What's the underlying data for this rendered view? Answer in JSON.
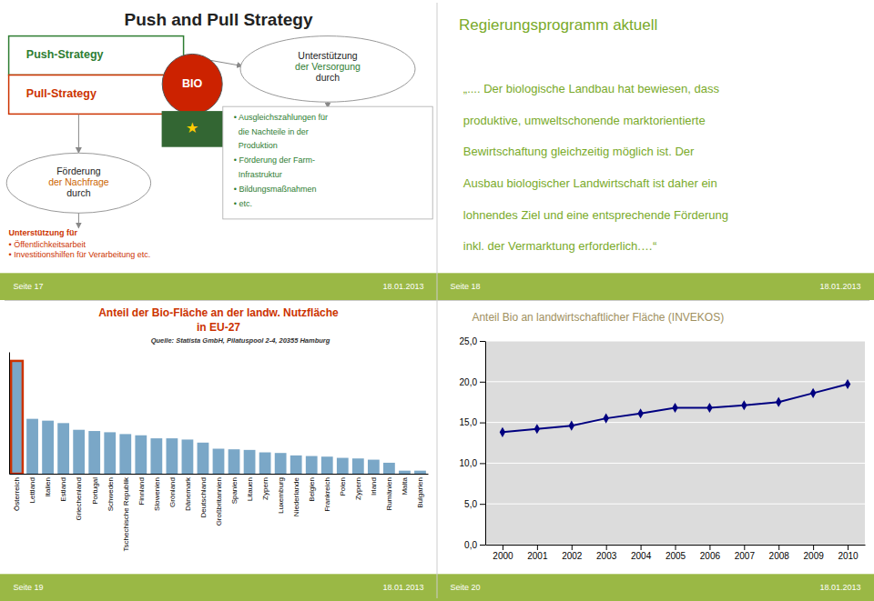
{
  "chart_data": [
    {
      "type": "diagram",
      "title": "Push and Pull Strategy",
      "annotations": [
        "Push-Strategy",
        "Pull-Strategy",
        "Förderung",
        "der Nachfrage",
        "durch",
        "Unterstützung für",
        "• Öffentlichkeitsarbeit",
        "• Investitionshilfen für Verarbeitung etc.",
        "BIO",
        "★",
        "Unterstützung",
        "der Versorgung",
        "durch",
        "• Ausgleichszahlungen für",
        "  die Nachteile in der",
        "  Produktion",
        "• Förderung der Farm-",
        "  Infrastruktur",
        "• Bildungsmaßnahmen",
        "• etc.",
        "Seite 17",
        "18.01.2013"
      ]
    },
    {
      "type": "text",
      "title": "Regierungsprogramm aktuell",
      "annotations": [
        "„.... Der biologische Landbau hat bewiesen, dass",
        "produktive, umweltschonende marktorientierte",
        "Bewirtschaftung gleichzeitig möglich ist. Der",
        "Ausbau biologischer Landwirtschaft ist daher ein",
        "lohnendes Ziel und eine entsprechende Förderung",
        "inkl. der Vermarktung erforderlich.…“",
        "Seite 18",
        "18.01.2013"
      ]
    },
    {
      "type": "bar",
      "title": "Anteil der Bio-Fläche an der landw. Nutzfläche",
      "subtitle": "in EU-27",
      "annotations": [
        "Quelle: Statista GmbH, Pilatuspool 2-4, 20355 Hamburg",
        "Seite 19",
        "18.01.2013"
      ],
      "categories": [
        "Österreich",
        "Lettland",
        "Italien",
        "Estland",
        "Griechenland",
        "Portugal",
        "Schweden",
        "Tschechische Republik",
        "Finnland",
        "Slowenien",
        "Grönland",
        "Dänemark",
        "Deutschland",
        "Großbritannien",
        "Spanien",
        "Litauen",
        "Zypern",
        "Luxemburg",
        "Niederlande",
        "Belgien",
        "Frankreich",
        "Polen",
        "Zypern",
        "Irland",
        "Rumänien",
        "Malta",
        "Bulgarien"
      ],
      "values": [
        18.5,
        9.0,
        8.7,
        8.3,
        7.2,
        7.0,
        6.8,
        6.5,
        6.3,
        5.8,
        5.8,
        5.6,
        5.1,
        4.1,
        4.0,
        3.9,
        3.5,
        3.4,
        3.0,
        2.9,
        2.8,
        2.6,
        2.5,
        2.3,
        1.8,
        0.5,
        0.5
      ],
      "color": "#7aa7c7",
      "ylim": [
        0,
        19.98
      ],
      "yticks": [],
      "tick_labels": "x",
      "grid": false
    },
    {
      "type": "line",
      "title": "Anteil Bio an landwirtschaftlicher Fläche (INVEKOS)",
      "annotations": [
        "Seite 20",
        "18.01.2013"
      ],
      "x": [
        2000,
        2001,
        2002,
        2003,
        2004,
        2005,
        2006,
        2007,
        2008,
        2009,
        2010
      ],
      "values": [
        13.8,
        14.2,
        14.6,
        15.5,
        16.1,
        16.8,
        16.8,
        17.1,
        17.5,
        18.6,
        19.7
      ],
      "color": "#000080",
      "marker": "diamond",
      "xlim": [
        1999.5,
        2010.5
      ],
      "xticks": [
        2000,
        2001,
        2002,
        2003,
        2004,
        2005,
        2006,
        2007,
        2008,
        2009,
        2010
      ],
      "ylim": [
        0,
        25
      ],
      "yticks": [
        {
          "value": 0.0,
          "label": "0,0"
        },
        {
          "value": 5.0,
          "label": "5,0"
        },
        {
          "value": 10.0,
          "label": "10,0"
        },
        {
          "value": 15.0,
          "label": "15,0"
        },
        {
          "value": 20.0,
          "label": "20,0"
        },
        {
          "value": 25.0,
          "label": "25,0"
        }
      ],
      "grid": true
    }
  ]
}
